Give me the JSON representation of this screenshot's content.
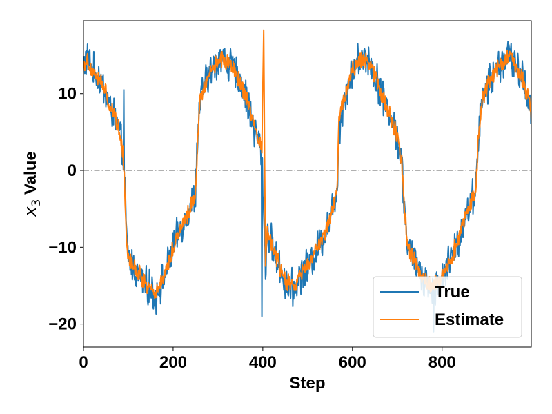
{
  "chart_data": {
    "type": "line",
    "title": "",
    "xlabel": "Step",
    "ylabel_main": "x",
    "ylabel_sub": "3",
    "ylabel_rest": " Value",
    "xlim": [
      0,
      999
    ],
    "ylim": [
      -23,
      19.5
    ],
    "xticks": [
      0,
      200,
      400,
      600,
      800
    ],
    "xtick_labels": [
      "0",
      "200",
      "400",
      "600",
      "800"
    ],
    "yticks": [
      -20,
      -10,
      0,
      10
    ],
    "ytick_labels": [
      "−20",
      "−10",
      "0",
      "10"
    ],
    "reference_line": {
      "y": 0,
      "style": "dash-dot",
      "color": "#808080"
    },
    "legend_position": "lower-right",
    "grid": false,
    "series": [
      {
        "name": "True",
        "color": "#1f77b4",
        "x": [
          0,
          10,
          20,
          30,
          40,
          50,
          60,
          70,
          80,
          88,
          92,
          96,
          100,
          110,
          120,
          130,
          140,
          150,
          160,
          170,
          180,
          190,
          200,
          210,
          220,
          230,
          240,
          250,
          255,
          260,
          270,
          280,
          290,
          300,
          310,
          320,
          330,
          340,
          350,
          360,
          370,
          380,
          390,
          398,
          402,
          406,
          410,
          420,
          430,
          440,
          450,
          460,
          470,
          480,
          490,
          500,
          510,
          520,
          530,
          540,
          550,
          560,
          566,
          570,
          580,
          590,
          600,
          610,
          620,
          630,
          640,
          650,
          660,
          670,
          680,
          690,
          700,
          710,
          716,
          720,
          724,
          730,
          740,
          750,
          760,
          770,
          780,
          790,
          800,
          810,
          820,
          830,
          840,
          850,
          860,
          870,
          876,
          880,
          890,
          900,
          910,
          920,
          930,
          940,
          950,
          960,
          970,
          980,
          990,
          999
        ],
        "y": [
          14,
          14.5,
          13,
          12.5,
          11.5,
          10,
          8,
          7,
          5,
          2,
          -1,
          -9,
          -11,
          -12.5,
          -13.5,
          -14,
          -15,
          -15.5,
          -16.5,
          -15,
          -14,
          -12,
          -10,
          -8.5,
          -7,
          -6,
          -4.5,
          -3,
          5,
          9,
          11,
          12.5,
          13.5,
          14.5,
          15,
          14,
          13.5,
          12.5,
          11.5,
          10,
          8,
          5.5,
          4,
          2,
          -5,
          -13,
          -8,
          -9.5,
          -11.5,
          -13,
          -14.5,
          -15,
          -15.5,
          -14,
          -13,
          -12.5,
          -11.5,
          -10.5,
          -9,
          -8,
          -6,
          -4,
          -2,
          5,
          9,
          11,
          13,
          14,
          14.5,
          15,
          14,
          12.5,
          11,
          9,
          8,
          6,
          4.5,
          1,
          -5,
          -8,
          -10,
          -11,
          -12,
          -13,
          -14,
          -15,
          -15.5,
          -15,
          -14,
          -12.5,
          -11.5,
          -10,
          -8.5,
          -6,
          -5,
          -3,
          -2,
          4,
          9,
          11,
          12,
          13,
          14,
          14.5,
          15,
          14,
          13,
          12,
          10,
          7.5
        ],
        "noise_amplitude": 1.8,
        "spikes": [
          {
            "x": 398,
            "y": -19
          },
          {
            "x": 781,
            "y": -21
          },
          {
            "x": 90,
            "y": 10.5
          }
        ]
      },
      {
        "name": "Estimate",
        "color": "#ff7f0e",
        "x": [
          0,
          10,
          20,
          30,
          40,
          50,
          60,
          70,
          80,
          88,
          92,
          96,
          100,
          110,
          120,
          130,
          140,
          150,
          160,
          170,
          180,
          190,
          200,
          210,
          220,
          230,
          240,
          250,
          255,
          260,
          270,
          280,
          290,
          300,
          310,
          320,
          330,
          340,
          350,
          360,
          370,
          380,
          390,
          398,
          402,
          406,
          410,
          420,
          430,
          440,
          450,
          460,
          470,
          480,
          490,
          500,
          510,
          520,
          530,
          540,
          550,
          560,
          566,
          570,
          580,
          590,
          600,
          610,
          620,
          630,
          640,
          650,
          660,
          670,
          680,
          690,
          700,
          710,
          716,
          720,
          724,
          730,
          740,
          750,
          760,
          770,
          780,
          790,
          800,
          810,
          820,
          830,
          840,
          850,
          860,
          870,
          876,
          880,
          890,
          900,
          910,
          920,
          930,
          940,
          950,
          960,
          970,
          980,
          990,
          999
        ],
        "y": [
          14,
          14.2,
          13,
          12.3,
          11.3,
          10,
          8.2,
          7.2,
          5.2,
          2.5,
          -2,
          -9,
          -11,
          -12.3,
          -13.2,
          -14,
          -14.8,
          -15.3,
          -16,
          -14.8,
          -13.8,
          -12,
          -10,
          -8.4,
          -7,
          -6,
          -4.6,
          -3,
          5,
          9,
          11,
          12.6,
          13.5,
          14.3,
          14.6,
          14,
          13.4,
          12.5,
          11.4,
          10,
          8,
          5.5,
          4,
          3,
          17.5,
          -12,
          -8,
          -9.4,
          -11.4,
          -13,
          -14.3,
          -14.8,
          -15.2,
          -14,
          -13,
          -12.4,
          -11.4,
          -10.4,
          -9,
          -8,
          -6,
          -4,
          -2,
          7,
          9,
          11,
          13,
          14,
          14.3,
          14.6,
          14,
          12.5,
          11,
          9,
          8,
          6,
          4.5,
          1,
          -5,
          -8,
          -10,
          -11,
          -12,
          -13,
          -14,
          -14.8,
          -15,
          -14.6,
          -13.8,
          -12.4,
          -11.4,
          -10,
          -8.4,
          -6,
          -5,
          -3,
          -2,
          4,
          9,
          11,
          12,
          13,
          14,
          14.3,
          14.6,
          14,
          13,
          12,
          10,
          7.5
        ],
        "noise_amplitude": 0.9,
        "spikes": []
      }
    ]
  }
}
